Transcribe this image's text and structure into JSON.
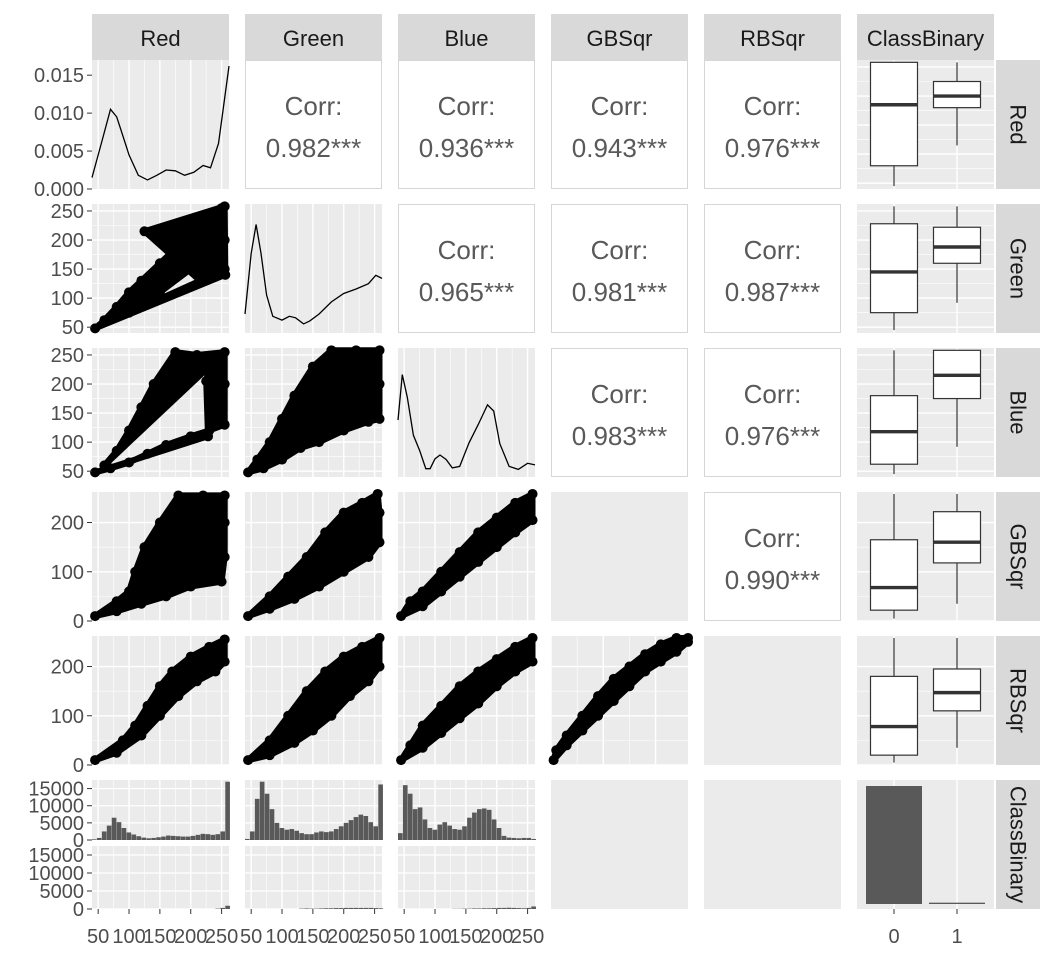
{
  "chart_data": {
    "type": "scatter-matrix",
    "title": "",
    "variables": [
      "Red",
      "Green",
      "Blue",
      "GBSqr",
      "RBSqr",
      "ClassBinary"
    ],
    "correlations": [
      {
        "row": "Red",
        "col": "Green",
        "label": "Corr:",
        "value": "0.982***"
      },
      {
        "row": "Red",
        "col": "Blue",
        "label": "Corr:",
        "value": "0.936***"
      },
      {
        "row": "Red",
        "col": "GBSqr",
        "label": "Corr:",
        "value": "0.943***"
      },
      {
        "row": "Red",
        "col": "RBSqr",
        "label": "Corr:",
        "value": "0.976***"
      },
      {
        "row": "Green",
        "col": "Blue",
        "label": "Corr:",
        "value": "0.965***"
      },
      {
        "row": "Green",
        "col": "GBSqr",
        "label": "Corr:",
        "value": "0.981***"
      },
      {
        "row": "Green",
        "col": "RBSqr",
        "label": "Corr:",
        "value": "0.987***"
      },
      {
        "row": "Blue",
        "col": "GBSqr",
        "label": "Corr:",
        "value": "0.983***"
      },
      {
        "row": "Blue",
        "col": "RBSqr",
        "label": "Corr:",
        "value": "0.976***"
      },
      {
        "row": "GBSqr",
        "col": "RBSqr",
        "label": "Corr:",
        "value": "0.990***"
      }
    ],
    "density_ylim": [
      0,
      0.017
    ],
    "density_y_ticks": [
      "0.000",
      "0.005",
      "0.010",
      "0.015"
    ],
    "density_y_values": [
      0,
      0.005,
      0.01,
      0.015
    ],
    "density_red": {
      "x": [
        40,
        55,
        70,
        80,
        90,
        100,
        115,
        130,
        145,
        160,
        175,
        190,
        205,
        220,
        232,
        245,
        255,
        262
      ],
      "y": [
        0.0015,
        0.006,
        0.0105,
        0.0095,
        0.007,
        0.0045,
        0.0018,
        0.0012,
        0.0018,
        0.0025,
        0.0024,
        0.0018,
        0.0022,
        0.0031,
        0.0028,
        0.006,
        0.012,
        0.0162
      ]
    },
    "density_green": {
      "x": [
        40,
        50,
        58,
        66,
        75,
        85,
        100,
        112,
        122,
        135,
        145,
        160,
        180,
        200,
        220,
        240,
        252,
        262
      ],
      "y": [
        0.0025,
        0.0105,
        0.0143,
        0.0105,
        0.005,
        0.0022,
        0.0017,
        0.0022,
        0.002,
        0.0012,
        0.0016,
        0.0025,
        0.0041,
        0.0052,
        0.0058,
        0.0065,
        0.0076,
        0.0072
      ]
    },
    "density_blue": {
      "x": [
        40,
        47,
        55,
        65,
        75,
        85,
        92,
        100,
        108,
        118,
        128,
        140,
        155,
        170,
        185,
        195,
        205,
        220,
        235,
        250,
        262
      ],
      "y": [
        0.0075,
        0.0135,
        0.0105,
        0.0055,
        0.0035,
        0.0011,
        0.0011,
        0.0024,
        0.0029,
        0.0023,
        0.0012,
        0.0014,
        0.0045,
        0.0069,
        0.0095,
        0.0087,
        0.0044,
        0.0014,
        0.001,
        0.0018,
        0.0016
      ]
    },
    "scatter_x_lim": [
      40,
      262
    ],
    "scatter_x_ticks": [
      "50",
      "100",
      "150",
      "200",
      "250"
    ],
    "scatter_x_values": [
      50,
      100,
      150,
      200,
      250
    ],
    "scatter_y_ticks_rgb": [
      "50",
      "100",
      "150",
      "200",
      "250"
    ],
    "scatter_y_values_rgb": [
      50,
      100,
      150,
      200,
      250
    ],
    "scatter_y_lim_rgb": [
      40,
      262
    ],
    "scatter_y_ticks_sqr": [
      "0",
      "100",
      "200"
    ],
    "scatter_y_values_sqr": [
      0,
      100,
      200
    ],
    "scatter_y_lim_sqr": [
      0,
      262
    ],
    "scatter_points": {
      "Green_vs_Red": [
        [
          45,
          48
        ],
        [
          60,
          62
        ],
        [
          80,
          85
        ],
        [
          100,
          110
        ],
        [
          120,
          130
        ],
        [
          150,
          160
        ],
        [
          180,
          190
        ],
        [
          200,
          220
        ],
        [
          230,
          245
        ],
        [
          250,
          255
        ],
        [
          255,
          200
        ],
        [
          255,
          150
        ],
        [
          200,
          150
        ],
        [
          150,
          110
        ],
        [
          100,
          75
        ],
        [
          215,
          130
        ],
        [
          125,
          215
        ],
        [
          255,
          258
        ],
        [
          256,
          140
        ]
      ],
      "Blue_vs_Red": [
        [
          45,
          48
        ],
        [
          70,
          55
        ],
        [
          100,
          65
        ],
        [
          130,
          80
        ],
        [
          160,
          95
        ],
        [
          200,
          110
        ],
        [
          230,
          120
        ],
        [
          255,
          130
        ],
        [
          255,
          200
        ],
        [
          255,
          255
        ],
        [
          210,
          250
        ],
        [
          175,
          255
        ],
        [
          140,
          200
        ],
        [
          120,
          160
        ],
        [
          100,
          120
        ],
        [
          80,
          85
        ],
        [
          60,
          60
        ],
        [
          230,
          230
        ],
        [
          225,
          205
        ],
        [
          228,
          110
        ]
      ],
      "Blue_vs_Green": [
        [
          45,
          48
        ],
        [
          70,
          55
        ],
        [
          100,
          70
        ],
        [
          130,
          90
        ],
        [
          160,
          100
        ],
        [
          200,
          120
        ],
        [
          240,
          135
        ],
        [
          258,
          140
        ],
        [
          258,
          200
        ],
        [
          258,
          258
        ],
        [
          220,
          258
        ],
        [
          180,
          258
        ],
        [
          150,
          230
        ],
        [
          120,
          180
        ],
        [
          100,
          140
        ],
        [
          80,
          100
        ],
        [
          60,
          70
        ]
      ],
      "GBSqr_vs_Red": [
        [
          45,
          10
        ],
        [
          80,
          20
        ],
        [
          120,
          35
        ],
        [
          160,
          50
        ],
        [
          200,
          70
        ],
        [
          250,
          80
        ],
        [
          255,
          130
        ],
        [
          255,
          200
        ],
        [
          255,
          255
        ],
        [
          220,
          255
        ],
        [
          180,
          255
        ],
        [
          150,
          200
        ],
        [
          125,
          150
        ],
        [
          110,
          100
        ],
        [
          100,
          60
        ],
        [
          80,
          40
        ]
      ],
      "GBSqr_vs_Green": [
        [
          45,
          10
        ],
        [
          80,
          25
        ],
        [
          120,
          45
        ],
        [
          160,
          70
        ],
        [
          200,
          100
        ],
        [
          240,
          130
        ],
        [
          258,
          160
        ],
        [
          258,
          220
        ],
        [
          255,
          258
        ],
        [
          230,
          240
        ],
        [
          200,
          220
        ],
        [
          170,
          180
        ],
        [
          140,
          130
        ],
        [
          110,
          90
        ],
        [
          80,
          50
        ]
      ],
      "GBSqr_vs_Blue": [
        [
          45,
          10
        ],
        [
          80,
          30
        ],
        [
          110,
          60
        ],
        [
          140,
          90
        ],
        [
          170,
          120
        ],
        [
          200,
          150
        ],
        [
          230,
          180
        ],
        [
          258,
          205
        ],
        [
          258,
          258
        ],
        [
          230,
          240
        ],
        [
          200,
          210
        ],
        [
          170,
          180
        ],
        [
          140,
          140
        ],
        [
          110,
          100
        ],
        [
          80,
          60
        ],
        [
          60,
          40
        ]
      ],
      "RBSqr_vs_Red": [
        [
          45,
          10
        ],
        [
          80,
          25
        ],
        [
          120,
          60
        ],
        [
          150,
          100
        ],
        [
          180,
          140
        ],
        [
          210,
          170
        ],
        [
          240,
          190
        ],
        [
          255,
          210
        ],
        [
          255,
          255
        ],
        [
          230,
          240
        ],
        [
          200,
          220
        ],
        [
          170,
          190
        ],
        [
          150,
          160
        ],
        [
          130,
          120
        ],
        [
          110,
          80
        ],
        [
          90,
          50
        ]
      ],
      "RBSqr_vs_Green": [
        [
          45,
          10
        ],
        [
          80,
          20
        ],
        [
          120,
          45
        ],
        [
          150,
          70
        ],
        [
          180,
          100
        ],
        [
          210,
          140
        ],
        [
          240,
          170
        ],
        [
          258,
          200
        ],
        [
          258,
          258
        ],
        [
          230,
          240
        ],
        [
          200,
          220
        ],
        [
          170,
          190
        ],
        [
          140,
          150
        ],
        [
          110,
          100
        ],
        [
          80,
          50
        ]
      ],
      "RBSqr_vs_Blue": [
        [
          45,
          10
        ],
        [
          80,
          35
        ],
        [
          110,
          65
        ],
        [
          140,
          95
        ],
        [
          170,
          125
        ],
        [
          200,
          160
        ],
        [
          230,
          190
        ],
        [
          258,
          210
        ],
        [
          258,
          258
        ],
        [
          230,
          240
        ],
        [
          200,
          215
        ],
        [
          170,
          190
        ],
        [
          140,
          160
        ],
        [
          110,
          120
        ],
        [
          80,
          80
        ],
        [
          60,
          40
        ]
      ],
      "RBSqr_vs_GBSqr": [
        [
          5,
          10
        ],
        [
          30,
          40
        ],
        [
          60,
          70
        ],
        [
          90,
          100
        ],
        [
          120,
          130
        ],
        [
          150,
          160
        ],
        [
          180,
          190
        ],
        [
          210,
          210
        ],
        [
          240,
          230
        ],
        [
          262,
          250
        ],
        [
          262,
          258
        ],
        [
          240,
          258
        ],
        [
          210,
          245
        ],
        [
          180,
          225
        ],
        [
          150,
          200
        ],
        [
          120,
          175
        ],
        [
          90,
          140
        ],
        [
          60,
          100
        ],
        [
          30,
          60
        ],
        [
          10,
          30
        ]
      ]
    },
    "boxplot": {
      "categories": [
        "0",
        "1"
      ],
      "Red": {
        "ylim": [
          40,
          262
        ],
        "boxes": [
          {
            "min": 45,
            "q1": 80,
            "median": 185,
            "q3": 258,
            "max": 258
          },
          {
            "min": 115,
            "q1": 180,
            "median": 200,
            "q3": 225,
            "max": 258
          }
        ]
      },
      "Green": {
        "ylim": [
          40,
          262
        ],
        "boxes": [
          {
            "min": 45,
            "q1": 75,
            "median": 145,
            "q3": 228,
            "max": 258
          },
          {
            "min": 92,
            "q1": 160,
            "median": 188,
            "q3": 222,
            "max": 258
          }
        ]
      },
      "Blue": {
        "ylim": [
          40,
          262
        ],
        "boxes": [
          {
            "min": 45,
            "q1": 62,
            "median": 118,
            "q3": 180,
            "max": 258
          },
          {
            "min": 92,
            "q1": 175,
            "median": 215,
            "q3": 258,
            "max": 258
          }
        ]
      },
      "GBSqr": {
        "ylim": [
          0,
          262
        ],
        "boxes": [
          {
            "min": 5,
            "q1": 22,
            "median": 68,
            "q3": 165,
            "max": 258
          },
          {
            "min": 35,
            "q1": 118,
            "median": 160,
            "q3": 222,
            "max": 258
          }
        ]
      },
      "RBSqr": {
        "ylim": [
          0,
          262
        ],
        "boxes": [
          {
            "min": 5,
            "q1": 20,
            "median": 78,
            "q3": 180,
            "max": 258
          },
          {
            "min": 35,
            "q1": 110,
            "median": 147,
            "q3": 195,
            "max": 258
          }
        ]
      }
    },
    "class_counts": {
      "categories": [
        "0",
        "1"
      ],
      "values": [
        17500,
        900
      ],
      "ylim": [
        0,
        17500
      ]
    },
    "hist_y_ticks": [
      "0",
      "5000",
      "10000",
      "15000"
    ],
    "hist_y_values": [
      0,
      5000,
      10000,
      15000
    ],
    "hist_ylim": [
      0,
      17500
    ],
    "hist_bins": [
      40,
      48,
      56,
      64,
      72,
      80,
      88,
      96,
      104,
      112,
      120,
      128,
      136,
      144,
      152,
      160,
      168,
      176,
      184,
      192,
      200,
      208,
      216,
      224,
      232,
      240,
      248,
      256
    ],
    "hist_red_class0": [
      200,
      600,
      2500,
      4200,
      6500,
      5200,
      3500,
      2200,
      1600,
      1100,
      700,
      500,
      600,
      800,
      1000,
      1300,
      1200,
      1100,
      1000,
      1000,
      1200,
      1500,
      1800,
      1700,
      1500,
      1700,
      2500,
      17000
    ],
    "hist_green_class0": [
      300,
      2500,
      12000,
      17000,
      13500,
      9000,
      5000,
      3500,
      3000,
      3200,
      2700,
      2000,
      1700,
      1700,
      2200,
      2500,
      2300,
      2500,
      3200,
      4000,
      5000,
      5800,
      6700,
      7400,
      7000,
      5200,
      4000,
      16200
    ],
    "hist_blue_class0": [
      2000,
      16000,
      13500,
      9000,
      9500,
      6000,
      3500,
      3000,
      4500,
      5200,
      4200,
      3200,
      3000,
      4000,
      6500,
      8000,
      9000,
      9200,
      8800,
      6000,
      3500,
      1200,
      700,
      600,
      500,
      600,
      600,
      300
    ],
    "hist_red_class1": [
      0,
      0,
      0,
      0,
      0,
      0,
      0,
      0,
      0,
      0,
      0,
      0,
      0,
      0,
      0,
      0,
      0,
      0,
      0,
      0,
      0,
      0,
      0,
      0,
      0,
      100,
      300,
      900
    ],
    "hist_green_class1": [
      0,
      0,
      0,
      0,
      0,
      0,
      0,
      0,
      0,
      0,
      0,
      100,
      150,
      100,
      100,
      150,
      200,
      200,
      250,
      250,
      300,
      300,
      300,
      300,
      300,
      300,
      250,
      200
    ],
    "hist_blue_class1": [
      0,
      0,
      0,
      0,
      0,
      0,
      0,
      0,
      0,
      0,
      0,
      50,
      50,
      100,
      100,
      150,
      150,
      200,
      200,
      250,
      300,
      300,
      350,
      300,
      250,
      200,
      300,
      700
    ]
  }
}
